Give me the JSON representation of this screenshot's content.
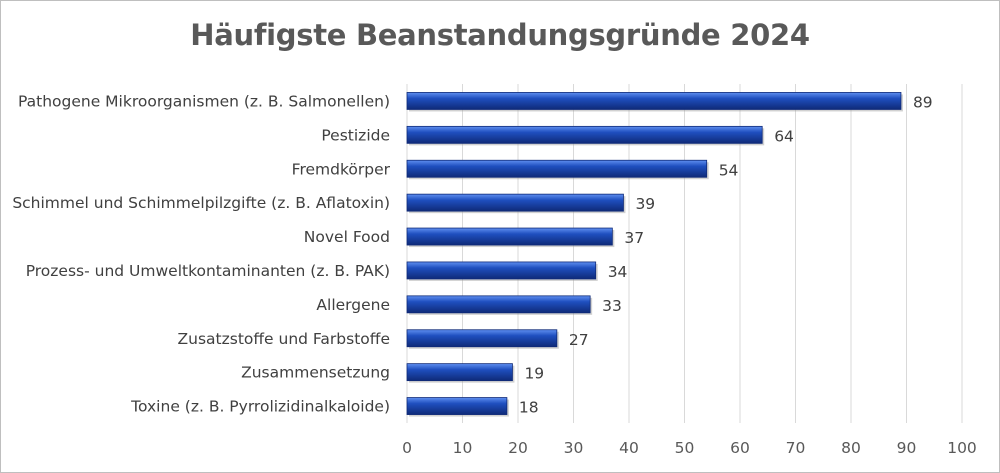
{
  "chart_data": {
    "type": "bar",
    "orientation": "horizontal",
    "title": "Häufigste Beanstandungsgründe 2024",
    "categories": [
      "Pathogene Mikroorganismen (z. B. Salmonellen)",
      "Pestizide",
      "Fremdkörper",
      "Schimmel und Schimmelpilzgifte (z. B. Aflatoxin)",
      "Novel Food",
      "Prozess- und Umweltkontaminanten (z. B. PAK)",
      "Allergene",
      "Zusatzstoffe und Farbstoffe",
      "Zusammensetzung",
      "Toxine (z. B. Pyrrolizidinalkaloide)"
    ],
    "values": [
      89,
      64,
      54,
      39,
      37,
      34,
      33,
      27,
      19,
      18
    ],
    "xlim": [
      0,
      100
    ],
    "xticks": [
      0,
      10,
      20,
      30,
      40,
      50,
      60,
      70,
      80,
      90,
      100
    ],
    "grid": "vertical",
    "legend": "none",
    "data_labels": true,
    "colors": {
      "bar": "#1f4fbf",
      "bar_highlight": "#5f8ff0",
      "bar_shadow": "#0f2a78",
      "grid": "#d9d9d9",
      "text": "#404040",
      "title": "#595959"
    }
  }
}
